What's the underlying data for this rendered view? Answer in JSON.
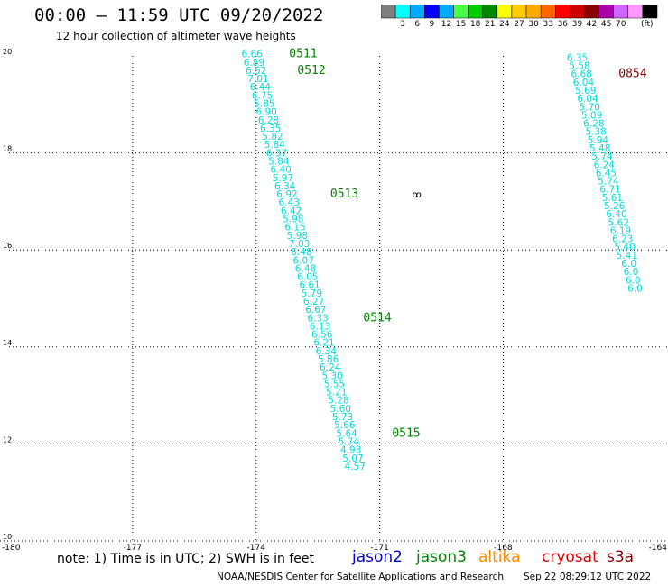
{
  "header": {
    "title": "00:00 – 11:59 UTC 09/20/2022",
    "subtitle": "12 hour collection of altimeter wave heights"
  },
  "colorbar": {
    "colors": [
      "#7f7f7f",
      "#00ffff",
      "#00aaff",
      "#0000ff",
      "#00aaff",
      "#44ff44",
      "#00cc00",
      "#008800",
      "#ffff00",
      "#ffcc00",
      "#ffaa00",
      "#ff6600",
      "#ff0000",
      "#cc0000",
      "#880000",
      "#aa00aa",
      "#cc66ff",
      "#ff99ff",
      "#000000"
    ],
    "labels": [
      "3",
      "6",
      "9",
      "12",
      "15",
      "18",
      "21",
      "24",
      "27",
      "30",
      "33",
      "36",
      "39",
      "42",
      "45",
      "70"
    ],
    "unit": "(ft)"
  },
  "chart_data": {
    "type": "scatter",
    "xlabel": "",
    "ylabel": "",
    "xlim": [
      -180,
      -164
    ],
    "ylim": [
      10,
      20
    ],
    "x_ticks": [
      "-180",
      "-177",
      "-174",
      "-171",
      "-168",
      "-164"
    ],
    "y_ticks": [
      "20",
      "18",
      "16",
      "14",
      "12",
      "10"
    ],
    "grid": true,
    "series": [
      {
        "name": "jason3",
        "color": "#00dddd",
        "points": [
          {
            "lon": -174.1,
            "lat": 19.97,
            "swh": "6.66"
          },
          {
            "lon": -174.05,
            "lat": 19.8,
            "swh": "6.89"
          },
          {
            "lon": -174.0,
            "lat": 19.63,
            "swh": "6.52"
          },
          {
            "lon": -173.95,
            "lat": 19.46,
            "swh": "7.01"
          },
          {
            "lon": -173.9,
            "lat": 19.29,
            "swh": "6.44"
          },
          {
            "lon": -173.85,
            "lat": 19.12,
            "swh": "6.75"
          },
          {
            "lon": -173.8,
            "lat": 18.95,
            "swh": "5.85"
          },
          {
            "lon": -173.75,
            "lat": 18.78,
            "swh": "6.90"
          },
          {
            "lon": -173.7,
            "lat": 18.61,
            "swh": "6.28"
          },
          {
            "lon": -173.65,
            "lat": 18.44,
            "swh": "6.35"
          },
          {
            "lon": -173.6,
            "lat": 18.27,
            "swh": "5.82"
          },
          {
            "lon": -173.55,
            "lat": 18.1,
            "swh": "5.84"
          },
          {
            "lon": -173.5,
            "lat": 17.93,
            "swh": "6.37"
          },
          {
            "lon": -173.45,
            "lat": 17.76,
            "swh": "5.84"
          },
          {
            "lon": -173.4,
            "lat": 17.59,
            "swh": "6.40"
          },
          {
            "lon": -173.35,
            "lat": 17.42,
            "swh": "5.97"
          },
          {
            "lon": -173.3,
            "lat": 17.25,
            "swh": "6.34"
          },
          {
            "lon": -173.25,
            "lat": 17.08,
            "swh": "6.92"
          },
          {
            "lon": -173.2,
            "lat": 16.91,
            "swh": "6.43"
          },
          {
            "lon": -173.15,
            "lat": 16.74,
            "swh": "6.42"
          },
          {
            "lon": -173.1,
            "lat": 16.57,
            "swh": "5.98"
          },
          {
            "lon": -173.05,
            "lat": 16.4,
            "swh": "6.15"
          },
          {
            "lon": -173.0,
            "lat": 16.23,
            "swh": "5.98"
          },
          {
            "lon": -172.95,
            "lat": 16.06,
            "swh": "7.03"
          },
          {
            "lon": -172.9,
            "lat": 15.89,
            "swh": "6.48"
          },
          {
            "lon": -172.85,
            "lat": 15.72,
            "swh": "6.07"
          },
          {
            "lon": -172.8,
            "lat": 15.55,
            "swh": "6.48"
          },
          {
            "lon": -172.75,
            "lat": 15.38,
            "swh": "6.05"
          },
          {
            "lon": -172.7,
            "lat": 15.21,
            "swh": "6.61"
          },
          {
            "lon": -172.65,
            "lat": 15.04,
            "swh": "5.79"
          },
          {
            "lon": -172.6,
            "lat": 14.87,
            "swh": "6.27"
          },
          {
            "lon": -172.55,
            "lat": 14.7,
            "swh": "6.67"
          },
          {
            "lon": -172.5,
            "lat": 14.53,
            "swh": "6.33"
          },
          {
            "lon": -172.45,
            "lat": 14.36,
            "swh": "6.13"
          },
          {
            "lon": -172.4,
            "lat": 14.19,
            "swh": "6.56"
          },
          {
            "lon": -172.35,
            "lat": 14.02,
            "swh": "6.21"
          },
          {
            "lon": -172.3,
            "lat": 13.85,
            "swh": "6.34"
          },
          {
            "lon": -172.25,
            "lat": 13.68,
            "swh": "5.86"
          },
          {
            "lon": -172.2,
            "lat": 13.51,
            "swh": "6.24"
          },
          {
            "lon": -172.15,
            "lat": 13.34,
            "swh": "5.30"
          },
          {
            "lon": -172.1,
            "lat": 13.17,
            "swh": "5.55"
          },
          {
            "lon": -172.05,
            "lat": 13.0,
            "swh": "5.21"
          },
          {
            "lon": -172.0,
            "lat": 12.83,
            "swh": "5.28"
          },
          {
            "lon": -171.95,
            "lat": 12.66,
            "swh": "5.60"
          },
          {
            "lon": -171.9,
            "lat": 12.49,
            "swh": "5.73"
          },
          {
            "lon": -171.85,
            "lat": 12.32,
            "swh": "5.66"
          },
          {
            "lon": -171.8,
            "lat": 12.15,
            "swh": "5.64"
          },
          {
            "lon": -171.75,
            "lat": 11.98,
            "swh": "5.74"
          },
          {
            "lon": -171.7,
            "lat": 11.81,
            "swh": "4.93"
          },
          {
            "lon": -171.65,
            "lat": 11.64,
            "swh": "5.07"
          },
          {
            "lon": -171.6,
            "lat": 11.47,
            "swh": "4.57"
          }
        ],
        "time_labels": [
          {
            "text": "0511",
            "lon": -173.2,
            "lat": 19.97
          },
          {
            "text": "0512",
            "lon": -173.0,
            "lat": 19.63
          },
          {
            "text": "0513",
            "lon": -172.2,
            "lat": 17.08
          },
          {
            "text": "0514",
            "lon": -171.4,
            "lat": 14.53
          },
          {
            "text": "0515",
            "lon": -170.7,
            "lat": 12.15
          }
        ]
      },
      {
        "name": "cryosat",
        "color": "#00dddd",
        "points": [
          {
            "lon": -166.2,
            "lat": 19.9,
            "swh": "6.35"
          },
          {
            "lon": -166.15,
            "lat": 19.73,
            "swh": "5.58"
          },
          {
            "lon": -166.1,
            "lat": 19.56,
            "swh": "6.68"
          },
          {
            "lon": -166.05,
            "lat": 19.39,
            "swh": "6.04"
          },
          {
            "lon": -166.0,
            "lat": 19.22,
            "swh": "5.69"
          },
          {
            "lon": -165.95,
            "lat": 19.05,
            "swh": "6.04"
          },
          {
            "lon": -165.9,
            "lat": 18.88,
            "swh": "5.70"
          },
          {
            "lon": -165.85,
            "lat": 18.71,
            "swh": "5.09"
          },
          {
            "lon": -165.8,
            "lat": 18.54,
            "swh": "6.28"
          },
          {
            "lon": -165.75,
            "lat": 18.37,
            "swh": "5.38"
          },
          {
            "lon": -165.7,
            "lat": 18.2,
            "swh": "5.94"
          },
          {
            "lon": -165.65,
            "lat": 18.03,
            "swh": "5.48"
          },
          {
            "lon": -165.6,
            "lat": 17.86,
            "swh": "5.74"
          },
          {
            "lon": -165.55,
            "lat": 17.69,
            "swh": "6.24"
          },
          {
            "lon": -165.5,
            "lat": 17.52,
            "swh": "6.45"
          },
          {
            "lon": -165.45,
            "lat": 17.35,
            "swh": "5.74"
          },
          {
            "lon": -165.4,
            "lat": 17.18,
            "swh": "6.71"
          },
          {
            "lon": -165.35,
            "lat": 17.01,
            "swh": "5.61"
          },
          {
            "lon": -165.3,
            "lat": 16.84,
            "swh": "5.26"
          },
          {
            "lon": -165.25,
            "lat": 16.67,
            "swh": "6.40"
          },
          {
            "lon": -165.2,
            "lat": 16.5,
            "swh": "5.62"
          },
          {
            "lon": -165.15,
            "lat": 16.33,
            "swh": "6.19"
          },
          {
            "lon": -165.1,
            "lat": 16.16,
            "swh": "6.23"
          },
          {
            "lon": -165.05,
            "lat": 15.99,
            "swh": "5.40"
          },
          {
            "lon": -165.0,
            "lat": 15.82,
            "swh": "5.41"
          },
          {
            "lon": -164.95,
            "lat": 15.65,
            "swh": "6.0"
          },
          {
            "lon": -164.9,
            "lat": 15.48,
            "swh": "6.0"
          },
          {
            "lon": -164.85,
            "lat": 15.31,
            "swh": "6.0"
          },
          {
            "lon": -164.8,
            "lat": 15.14,
            "swh": "6.0"
          }
        ],
        "time_labels": [
          {
            "text": "0854",
            "lon": -165.2,
            "lat": 19.56
          }
        ]
      }
    ],
    "marker_symbol": {
      "text": "ꝏ",
      "lon": -170.1,
      "lat": 17.08
    }
  },
  "footer": {
    "note": "note: 1) Time is in UTC; 2) SWH is in feet",
    "legend": [
      {
        "label": "jason2",
        "color": "#0000cc"
      },
      {
        "label": "jason3",
        "color": "#008800"
      },
      {
        "label": "altika",
        "color": "#ff8800"
      },
      {
        "label": "cryosat",
        "color": "#dd0000"
      },
      {
        "label": "s3a",
        "color": "#880000"
      }
    ],
    "credit": "NOAA/NESDIS Center for Satellite Applications and Research",
    "timestamp": "Sep 22 08:29:12 UTC 2022"
  }
}
